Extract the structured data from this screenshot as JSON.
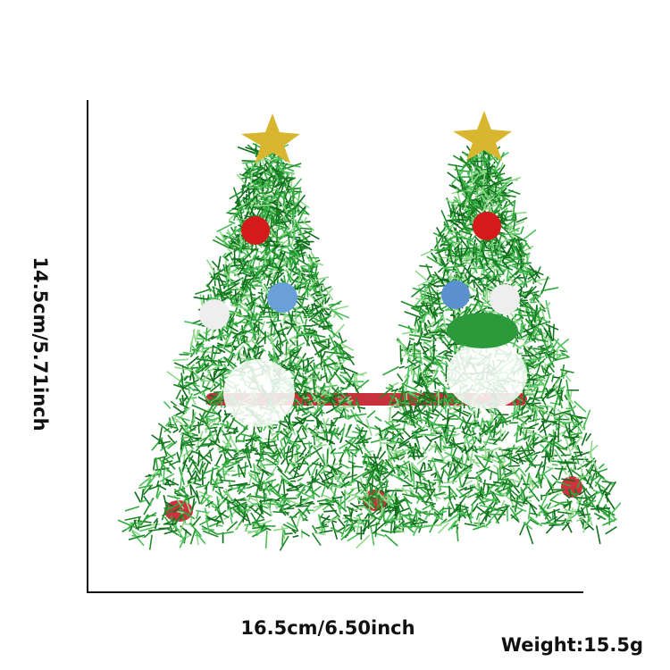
{
  "dimensions": {
    "height_label": "14.5cm/5.71inch",
    "width_label": "16.5cm/6.50inch",
    "weight_label": "Weight:15.5g"
  },
  "product": {
    "image": "christmas-tree-tinsel-glasses",
    "colors": {
      "tinsel": "#1f8a2a",
      "star": "#d8b630",
      "frame": "#c8303c",
      "ornament_red": "#d41a1a",
      "ornament_blue": "#6aa0d8",
      "ornament_white": "#eeeeee"
    }
  }
}
